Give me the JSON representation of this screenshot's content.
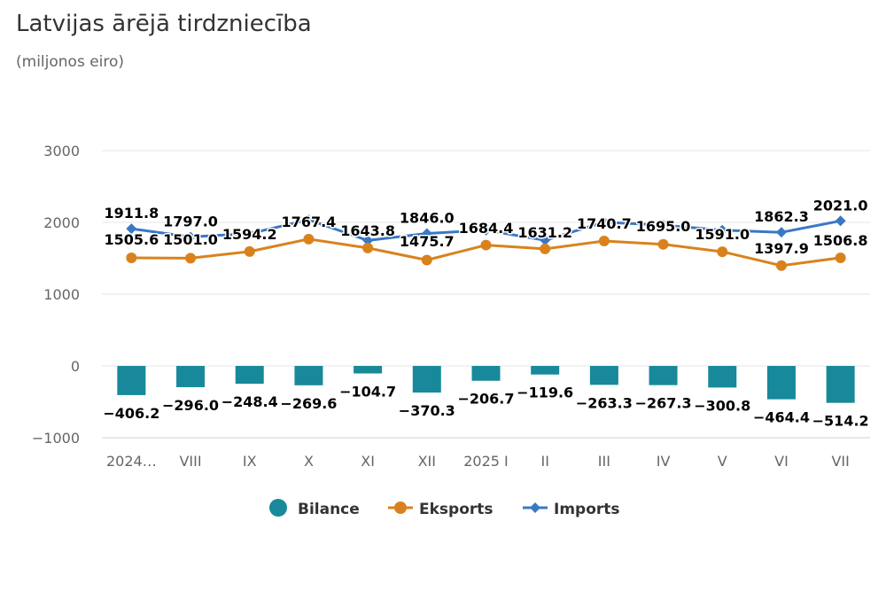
{
  "title": "Latvijas ārējā tirdzniecība",
  "subtitle": "(miljonos eiro)",
  "chart_data": {
    "type": "bar",
    "categories": [
      "2024…",
      "VIII",
      "IX",
      "X",
      "XI",
      "XII",
      "2025 I",
      "II",
      "III",
      "IV",
      "V",
      "VI",
      "VII"
    ],
    "series": [
      {
        "name": "Bilance",
        "type": "bar",
        "color": "#17899a",
        "values": [
          -406.2,
          -296.0,
          -248.4,
          -269.6,
          -104.7,
          -370.3,
          -206.7,
          -119.6,
          -263.3,
          -267.3,
          -300.8,
          -464.4,
          -514.2
        ],
        "labels": [
          "−406.2",
          "−296.0",
          "−248.4",
          "−269.6",
          "−104.7",
          "−370.3",
          "−206.7",
          "−119.6",
          "−263.3",
          "−267.3",
          "−300.8",
          "−464.4",
          "−514.2"
        ]
      },
      {
        "name": "Eksports",
        "type": "line",
        "color": "#d9821d",
        "values": [
          1505.6,
          1501.0,
          1594.2,
          1767.4,
          1643.8,
          1475.7,
          1684.4,
          1631.2,
          1740.7,
          1695.0,
          1591.0,
          1397.9,
          1506.8
        ],
        "labels": [
          "1505.6",
          "1501.0",
          "1594.2",
          "1767.4",
          "1643.8",
          "1475.7",
          "1684.4",
          "1631.2",
          "1740.7",
          "1695.0",
          "1591.0",
          "1397.9",
          "1506.8"
        ]
      },
      {
        "name": "Imports",
        "type": "line",
        "color": "#3a78c4",
        "values": [
          1911.8,
          1797.0,
          1842.6,
          2037.0,
          1748.5,
          1846.0,
          1891.1,
          1750.8,
          2004.0,
          1962.3,
          1891.8,
          1862.3,
          2021.0
        ],
        "labels": [
          "1911.8",
          "1797.0",
          "",
          "",
          "",
          "1846.0",
          "",
          "",
          "",
          "",
          "",
          "1862.3",
          "2021.0"
        ]
      }
    ],
    "yticks": [
      "3000",
      "2000",
      "1000",
      "0",
      "−1000"
    ],
    "ylim": [
      -1000,
      3000
    ],
    "grid": true,
    "legend_position": "bottom-center"
  }
}
